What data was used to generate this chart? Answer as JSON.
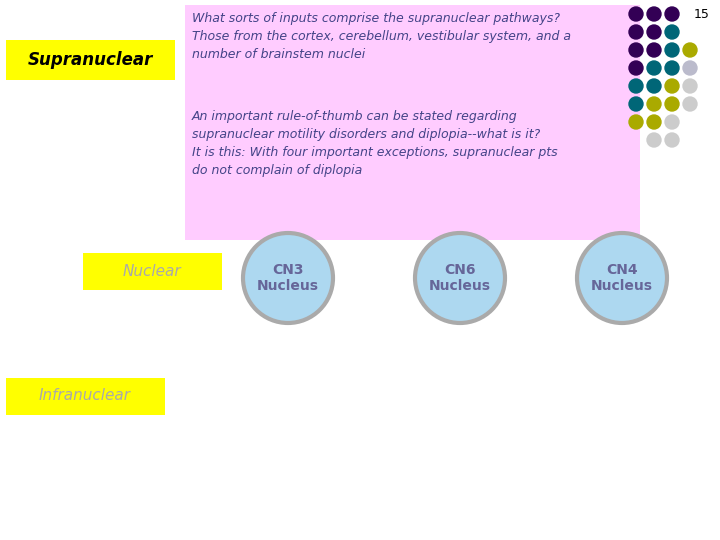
{
  "slide_number": "15",
  "background_color": "#ffffff",
  "supranuclear_label": "Supranuclear",
  "supranuclear_box_color": "#ffff00",
  "nuclear_label": "Nuclear",
  "nuclear_box_color": "#ffff00",
  "infranuclear_label": "Infranuclear",
  "infranuclear_box_color": "#ffff00",
  "pink_box_color": "#ffccff",
  "text1_line1": "What sorts of inputs comprise the supranuclear pathways?",
  "text1_line2": "Those from the cortex, cerebellum, vestibular system, and a",
  "text1_line3": "number of brainstem nuclei",
  "text2_line1": "An important rule-of-thumb can be stated regarding",
  "text2_line2": "supranuclear motility disorders and diplopia--what is it?",
  "text2_line3": "It is this: With four important exceptions, supranuclear pts",
  "text2_line4": "do not complain of diplopia",
  "cn3_label": "CN3\nNucleus",
  "cn6_label": "CN6\nNucleus",
  "cn4_label": "CN4\nNucleus",
  "circle_fill_color": "#add8f0",
  "circle_edge_color": "#aaaaaa",
  "circle_text_color": "#666699",
  "label_text_color_supra": "#000000",
  "label_text_color_nuclear": "#aaaaaa",
  "dot_grid": [
    [
      "#330055",
      "#330055",
      "#330055",
      null
    ],
    [
      "#330055",
      "#330055",
      "#006677",
      null
    ],
    [
      "#330055",
      "#330055",
      "#006677",
      "#aaaa00"
    ],
    [
      "#330055",
      "#006677",
      "#006677",
      "#bbbbcc"
    ],
    [
      "#006677",
      "#006677",
      "#aaaa00",
      "#cccccc"
    ],
    [
      "#006677",
      "#aaaa00",
      "#aaaa00",
      "#cccccc"
    ],
    [
      "#aaaa00",
      "#aaaa00",
      "#cccccc",
      null
    ],
    [
      null,
      "#cccccc",
      "#cccccc",
      null
    ]
  ]
}
